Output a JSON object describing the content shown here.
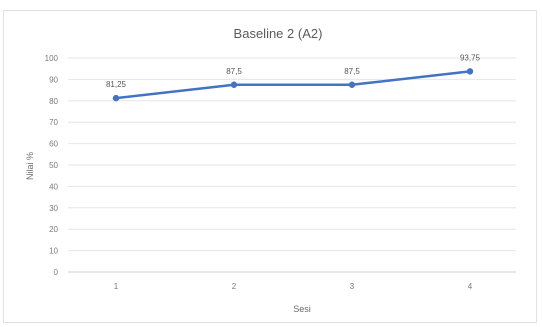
{
  "chart_data": {
    "type": "line",
    "title": "Baseline 2 (A2)",
    "xlabel": "Sesi",
    "ylabel": "Nilai %",
    "categories": [
      "1",
      "2",
      "3",
      "4"
    ],
    "series": [
      {
        "values": [
          81.25,
          87.5,
          87.5,
          93.75
        ],
        "labels": [
          "81,25",
          "87,5",
          "87,5",
          "93,75"
        ],
        "color": "#4472c4"
      }
    ],
    "ylim": [
      0,
      100
    ],
    "yticks": [
      0,
      10,
      20,
      30,
      40,
      50,
      60,
      70,
      80,
      90,
      100
    ],
    "grid": true,
    "legend": "none"
  }
}
